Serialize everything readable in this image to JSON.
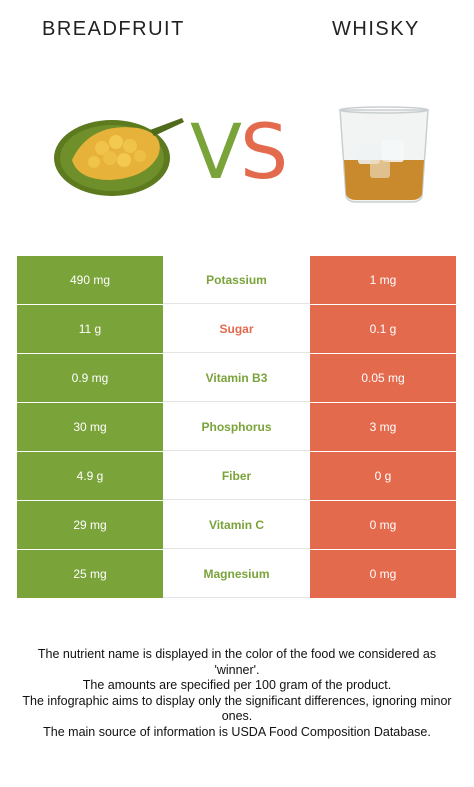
{
  "header": {
    "left_food": "BREADFRUIT",
    "right_food": "WHISKY",
    "vs_v": "V",
    "vs_s": "S"
  },
  "colors": {
    "winner_left": "#7aa33a",
    "winner_right": "#e46a4e"
  },
  "rows": [
    {
      "left": "490 mg",
      "nutrient": "Potassium",
      "right": "1 mg",
      "winner": "left"
    },
    {
      "left": "11 g",
      "nutrient": "Sugar",
      "right": "0.1 g",
      "winner": "right"
    },
    {
      "left": "0.9 mg",
      "nutrient": "Vitamin B3",
      "right": "0.05 mg",
      "winner": "left"
    },
    {
      "left": "30 mg",
      "nutrient": "Phosphorus",
      "right": "3 mg",
      "winner": "left"
    },
    {
      "left": "4.9 g",
      "nutrient": "Fiber",
      "right": "0 g",
      "winner": "left"
    },
    {
      "left": "29 mg",
      "nutrient": "Vitamin C",
      "right": "0 mg",
      "winner": "left"
    },
    {
      "left": "25 mg",
      "nutrient": "Magnesium",
      "right": "0 mg",
      "winner": "left"
    }
  ],
  "footnote": {
    "line1": "The nutrient name is displayed in the color of the food we considered as",
    "line2": "'winner'.",
    "line3": "The amounts are specified per 100 gram of the product.",
    "line4": "The infographic aims to display only the significant differences, ignoring minor",
    "line5": "ones.",
    "line6": "The main source of information is USDA Food Composition Database."
  }
}
